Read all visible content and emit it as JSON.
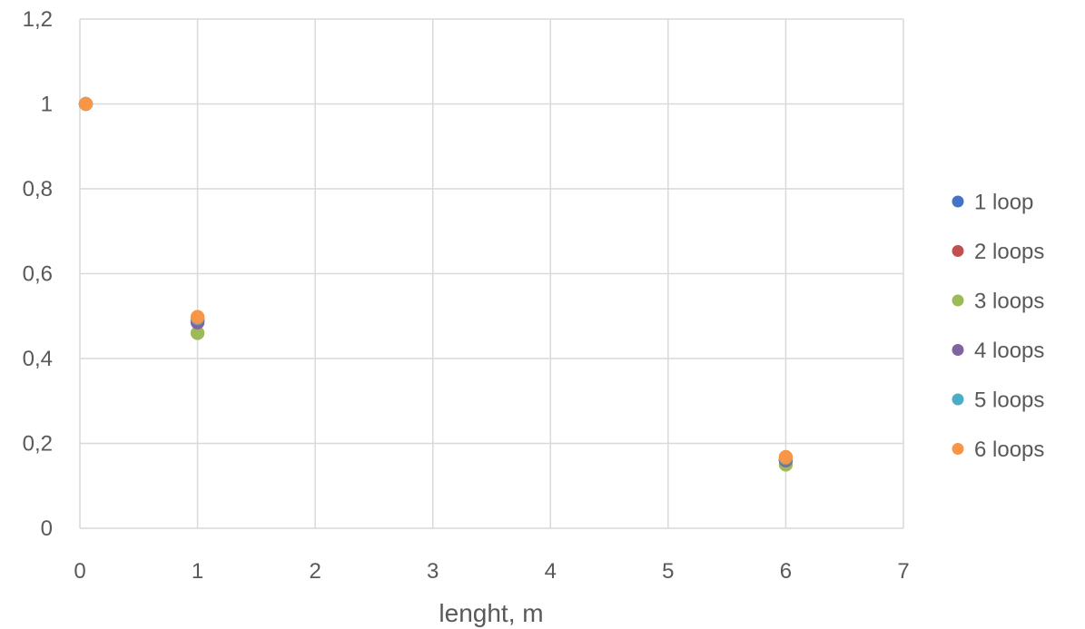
{
  "chart_data": {
    "type": "scatter",
    "title": "",
    "xlabel": "lenght, m",
    "ylabel": "",
    "xlim": [
      0,
      7
    ],
    "ylim": [
      0,
      1.2
    ],
    "x_ticks": [
      "0",
      "1",
      "2",
      "3",
      "4",
      "5",
      "6",
      "7"
    ],
    "y_ticks": [
      "0",
      "0,2",
      "0,4",
      "0,6",
      "0,8",
      "1",
      "1,2"
    ],
    "grid": true,
    "legend_position": "right",
    "series": [
      {
        "name": "1 loop",
        "color": "#4472C4",
        "x": [
          0.05,
          1,
          6
        ],
        "y": [
          1,
          0.49,
          0.16
        ]
      },
      {
        "name": "2 loops",
        "color": "#C0504D",
        "x": [
          0.05,
          1,
          6
        ],
        "y": [
          1,
          0.49,
          0.16
        ]
      },
      {
        "name": "3 loops",
        "color": "#9BBB59",
        "x": [
          0.05,
          1,
          6
        ],
        "y": [
          1,
          0.46,
          0.15
        ]
      },
      {
        "name": "4 loops",
        "color": "#8064A2",
        "x": [
          0.05,
          1,
          6
        ],
        "y": [
          1,
          0.485,
          0.16
        ]
      },
      {
        "name": "5 loops",
        "color": "#4BACC6",
        "x": [
          0.05,
          1,
          6
        ],
        "y": [
          1,
          0.495,
          0.165
        ]
      },
      {
        "name": "6 loops",
        "color": "#F79646",
        "x": [
          0.05,
          1,
          6
        ],
        "y": [
          1,
          0.498,
          0.168
        ]
      }
    ]
  }
}
